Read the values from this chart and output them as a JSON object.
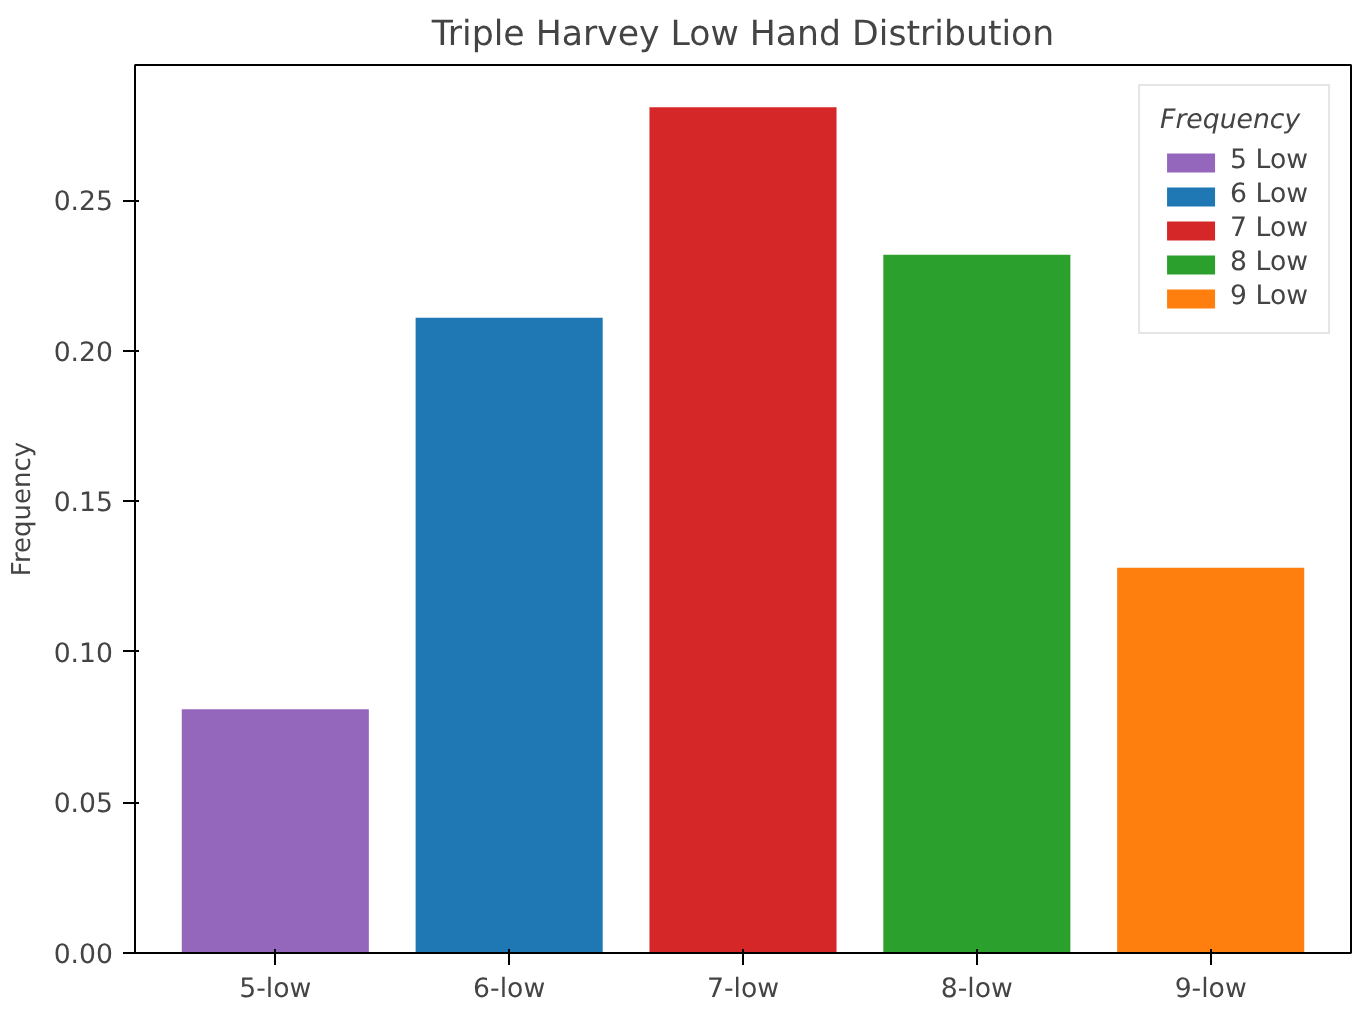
{
  "chart_data": {
    "type": "bar",
    "title": "Triple Harvey Low Hand Distribution",
    "ylabel": "Frequency",
    "legend_title": "Frequency",
    "categories": [
      "5-low",
      "6-low",
      "7-low",
      "8-low",
      "9-low"
    ],
    "series": [
      {
        "name": "5 Low",
        "color": "#9467bd",
        "values": [
          0.081,
          null,
          null,
          null,
          null
        ]
      },
      {
        "name": "6 Low",
        "color": "#1f77b4",
        "values": [
          null,
          0.211,
          null,
          null,
          null
        ]
      },
      {
        "name": "7 Low",
        "color": "#d62728",
        "values": [
          null,
          null,
          0.281,
          null,
          null
        ]
      },
      {
        "name": "8 Low",
        "color": "#2ca02c",
        "values": [
          null,
          null,
          null,
          0.232,
          null
        ]
      },
      {
        "name": "9 Low",
        "color": "#ff7f0e",
        "values": [
          null,
          null,
          null,
          null,
          0.128
        ]
      }
    ],
    "ylim": [
      0,
      0.295
    ],
    "yticks": [
      {
        "value": 0,
        "label": "0.00"
      },
      {
        "value": 0.05,
        "label": "0.05"
      },
      {
        "value": 0.1,
        "label": "0.10"
      },
      {
        "value": 0.15,
        "label": "0.15"
      },
      {
        "value": 0.2,
        "label": "0.20"
      },
      {
        "value": 0.25,
        "label": "0.25"
      }
    ],
    "legend": "top right",
    "grid": false
  }
}
